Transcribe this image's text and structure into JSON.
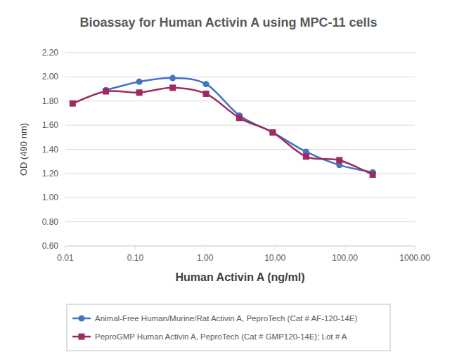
{
  "chart_data": {
    "type": "line",
    "title": "Bioassay for Human Activin A using MPC-11 cells",
    "x_label": "Human Activin A (ng/ml)",
    "y_label": "OD (490 nm)",
    "log": "x",
    "grid": true,
    "legend": "bottom",
    "x": [
      0.0127,
      0.038,
      0.114,
      0.343,
      1.03,
      3.09,
      9.26,
      27.8,
      83.3,
      250
    ],
    "xlim": [
      0.01,
      1000
    ],
    "xticks": [
      {
        "value": 0.01,
        "label": "0.01"
      },
      {
        "value": 0.1,
        "label": "0.10"
      },
      {
        "value": 1,
        "label": "1.00"
      },
      {
        "value": 10,
        "label": "10.00"
      },
      {
        "value": 100,
        "label": "100.00"
      },
      {
        "value": 1000,
        "label": "1000.00"
      }
    ],
    "ylim": [
      0.6,
      2.2
    ],
    "yticks": [
      {
        "value": 0.6,
        "label": "0.60"
      },
      {
        "value": 0.8,
        "label": "0.80"
      },
      {
        "value": 1.0,
        "label": "1.00"
      },
      {
        "value": 1.2,
        "label": "1.20"
      },
      {
        "value": 1.4,
        "label": "1.40"
      },
      {
        "value": 1.6,
        "label": "1.60"
      },
      {
        "value": 1.8,
        "label": "1.80"
      },
      {
        "value": 2.0,
        "label": "2.00"
      },
      {
        "value": 2.2,
        "label": "2.20"
      }
    ],
    "series": [
      {
        "name": "Animal-Free Human/Murine/Rat Activin A, PeproTech (Cat # AF-120-14E)",
        "color": "#4472c4",
        "marker": "circle",
        "line_style": "solid",
        "values": [
          null,
          1.89,
          1.96,
          1.99,
          1.94,
          1.68,
          1.54,
          1.38,
          1.27,
          1.21
        ]
      },
      {
        "name": "PeproGMP Human Activin A, PeproTech (Cat # GMP120-14E); Lot # A",
        "color": "#9e2a5e",
        "marker": "square",
        "line_style": "solid",
        "values": [
          1.78,
          1.88,
          1.87,
          1.91,
          1.86,
          1.66,
          1.54,
          1.34,
          1.31,
          1.19
        ]
      }
    ]
  }
}
